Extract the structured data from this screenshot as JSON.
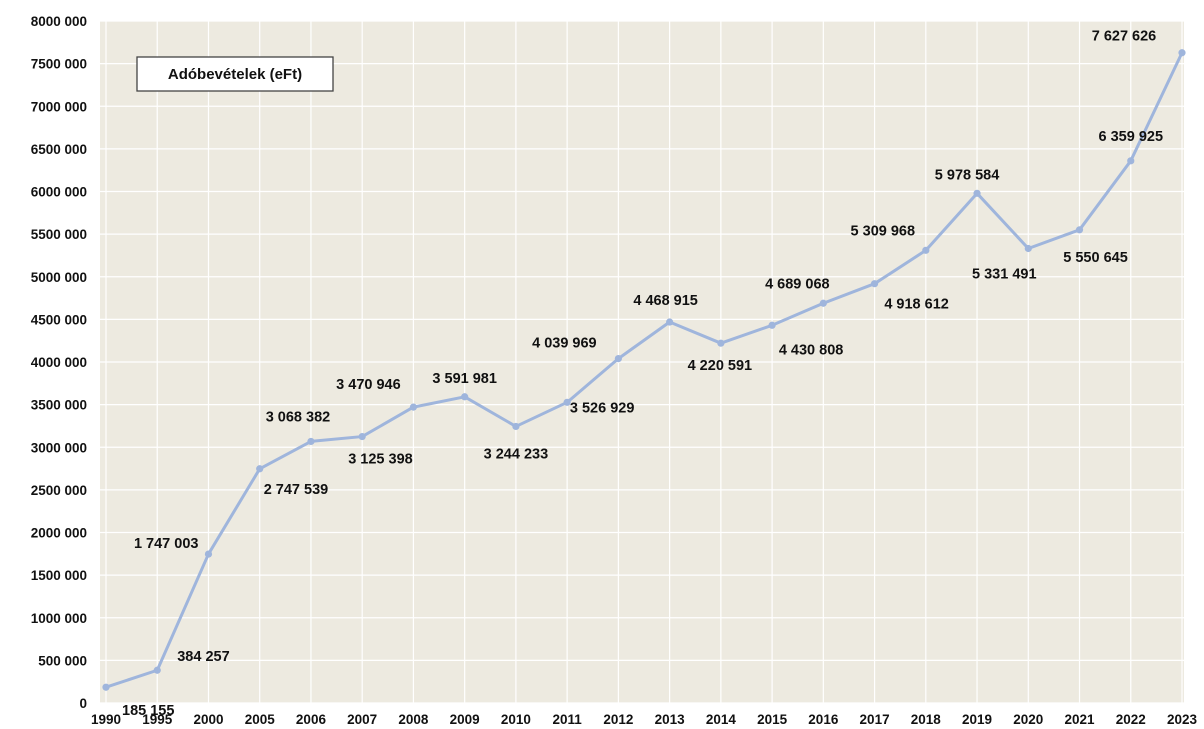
{
  "chart_data": {
    "type": "line",
    "title": "Adóbevételek (eFt)",
    "xlabel": "",
    "ylabel": "",
    "ylim": [
      0,
      8000000
    ],
    "y_ticks": [
      "0",
      "500 000",
      "1000 000",
      "1500 000",
      "2000 000",
      "2500 000",
      "3000 000",
      "3500 000",
      "4000 000",
      "4500 000",
      "5000 000",
      "5500 000",
      "6000 000",
      "6500 000",
      "7000 000",
      "7500 000",
      "8000 000"
    ],
    "grid": true,
    "legend": "none",
    "categories": [
      "1990",
      "1995",
      "2000",
      "2005",
      "2006",
      "2007",
      "2008",
      "2009",
      "2010",
      "2011",
      "2012",
      "2013",
      "2014",
      "2015",
      "2016",
      "2017",
      "2018",
      "2019",
      "2020",
      "2021",
      "2022",
      "2023"
    ],
    "series": [
      {
        "values": [
          185155,
          384257,
          1747003,
          2747539,
          3068382,
          3125398,
          3470946,
          3591981,
          3244233,
          3526929,
          4039969,
          4468915,
          4220591,
          4430808,
          4689068,
          4918612,
          5309968,
          5978584,
          5331491,
          5550645,
          6359925,
          7627626
        ],
        "labels": [
          "185 155",
          "384 257",
          "1 747 003",
          "2 747 539",
          "3 068 382",
          "3 125 398",
          "3 470 946",
          "3 591 981",
          "3 244 233",
          "3 526 929",
          "4 039 969",
          "4 468 915",
          "4 220 591",
          "4 430 808",
          "4 689 068",
          "4 918 612",
          "5 309 968",
          "5 978 584",
          "5 331 491",
          "5 550 645",
          "6 359 925",
          "7 627 626"
        ],
        "color": "#9fb5dc"
      }
    ],
    "colors": {
      "plot_background": "#edeae0",
      "gridline": "#ffffff",
      "line": "#9fb5dc",
      "marker": "#9fb5dc"
    }
  }
}
